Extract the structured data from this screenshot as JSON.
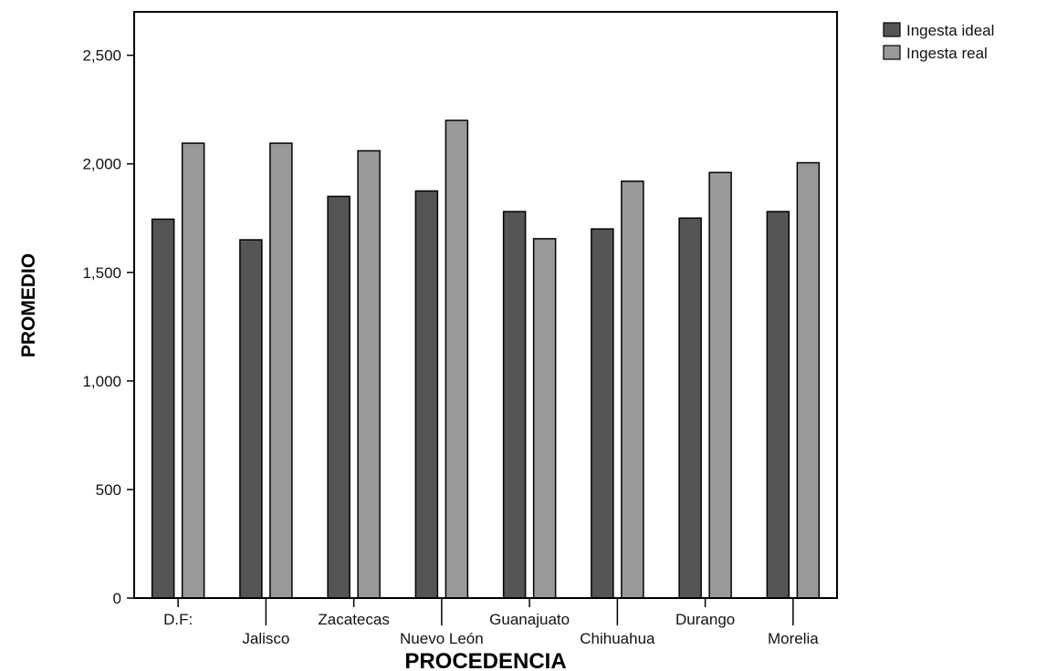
{
  "chart_data": {
    "type": "bar",
    "categories": [
      "D.F:",
      "Jalisco",
      "Zacatecas",
      "Nuevo León",
      "Guanajuato",
      "Chihuahua",
      "Durango",
      "Morelia"
    ],
    "series": [
      {
        "name": "Ingesta ideal",
        "color": "#555555",
        "values": [
          1745,
          1650,
          1850,
          1875,
          1780,
          1700,
          1750,
          1780
        ]
      },
      {
        "name": "Ingesta real",
        "color": "#999999",
        "values": [
          2095,
          2095,
          2060,
          2200,
          1655,
          1920,
          1960,
          2005
        ]
      }
    ],
    "xlabel": "PROCEDENCIA",
    "ylabel": "PROMEDIO",
    "ylim": [
      0,
      2700
    ],
    "yticks": [
      0,
      500,
      1000,
      1500,
      2000,
      2500
    ],
    "ytick_labels": [
      "0",
      "500",
      "1,000",
      "1,500",
      "2,000",
      "2,500"
    ],
    "grid": false,
    "legend_position": "top-right"
  }
}
